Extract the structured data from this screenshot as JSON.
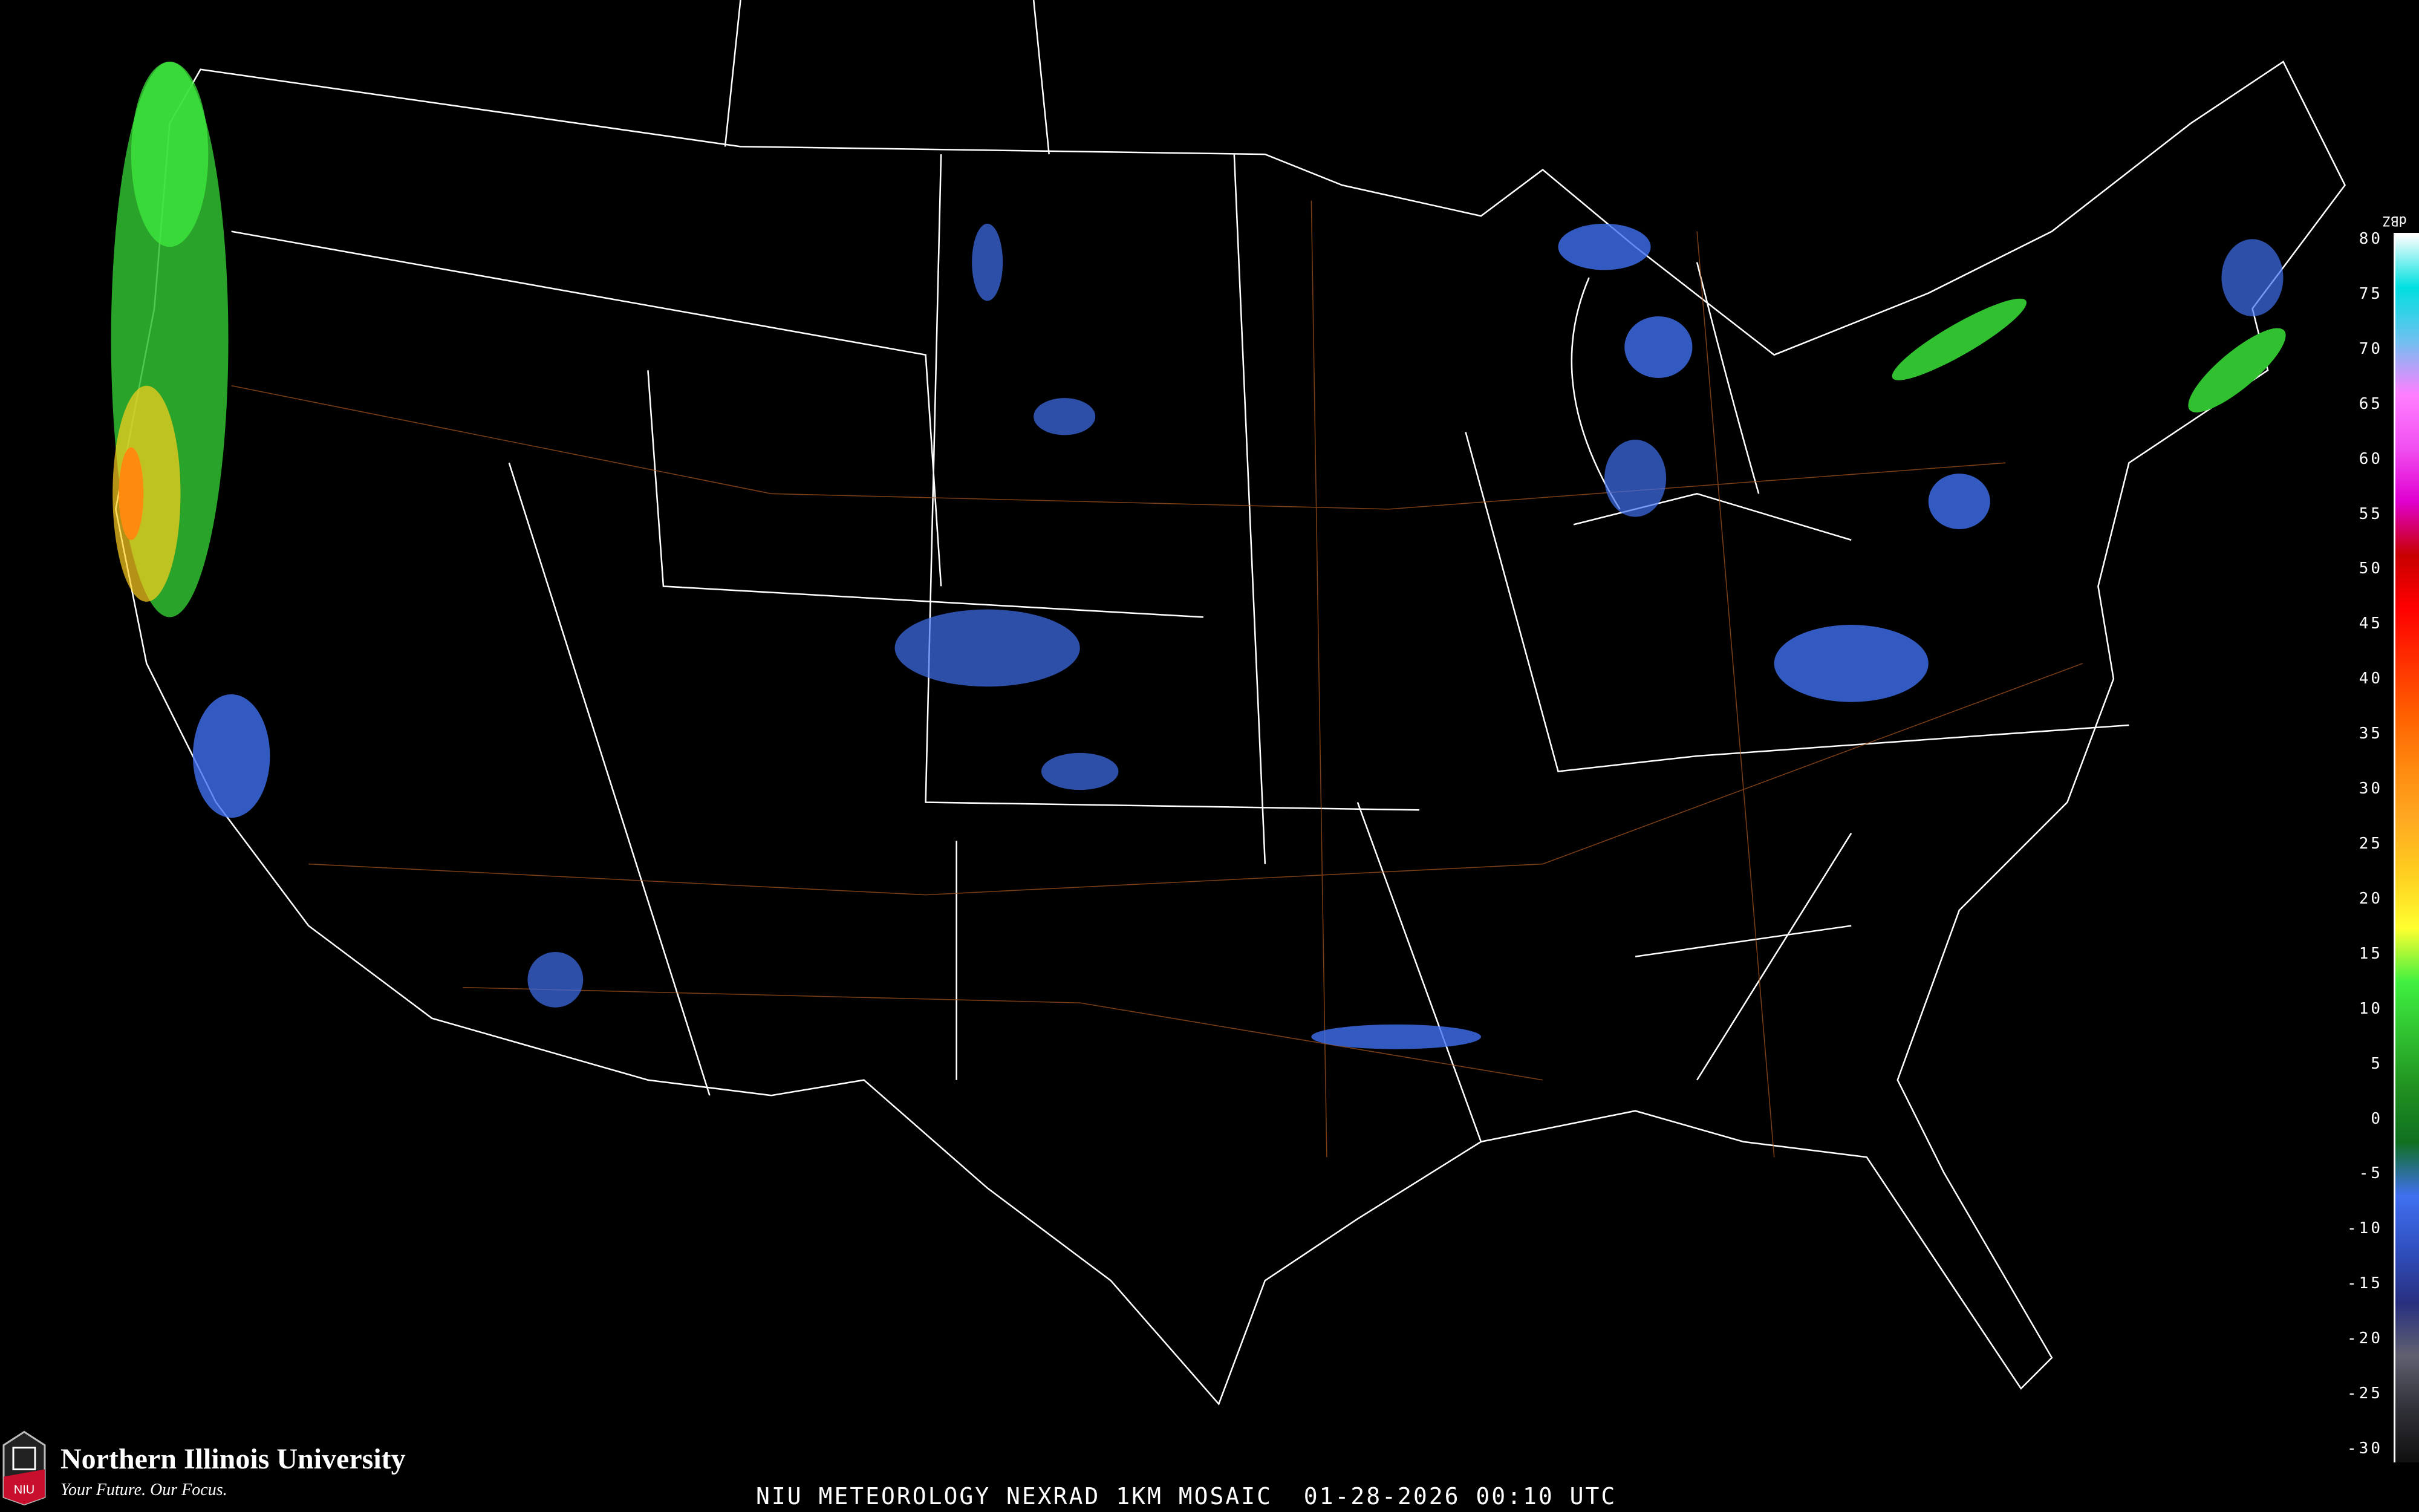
{
  "title": "NIU METEOROLOGY NEXRAD 1KM MOSAIC  01-28-2026 00:10 UTC",
  "logo": {
    "name": "Northern Illinois University",
    "tagline": "Your Future. Our Focus.",
    "mark": "NIU",
    "brand_color": "#c8102e"
  },
  "legend": {
    "unit": "dBZ",
    "ticks": [
      "80",
      "75",
      "70",
      "65",
      "60",
      "55",
      "50",
      "45",
      "40",
      "35",
      "30",
      "25",
      "20",
      "15",
      "10",
      "5",
      "0",
      "-5",
      "-10",
      "-15",
      "-20",
      "-25",
      "-30"
    ],
    "colors": [
      "#ffffff",
      "#00e0e0",
      "#70c0f0",
      "#ff80ff",
      "#f050f0",
      "#e000d0",
      "#c80000",
      "#ff0000",
      "#ff3000",
      "#ff6000",
      "#ff8a10",
      "#ffaa20",
      "#ffd020",
      "#ffff30",
      "#40f040",
      "#30c030",
      "#209020",
      "#107020",
      "#4070f0",
      "#3050c0",
      "#283080",
      "#606070",
      "#303038",
      "#101010"
    ]
  },
  "map": {
    "background": "#000000",
    "state_lines": "#ffffff",
    "roads": "#b05a20"
  }
}
